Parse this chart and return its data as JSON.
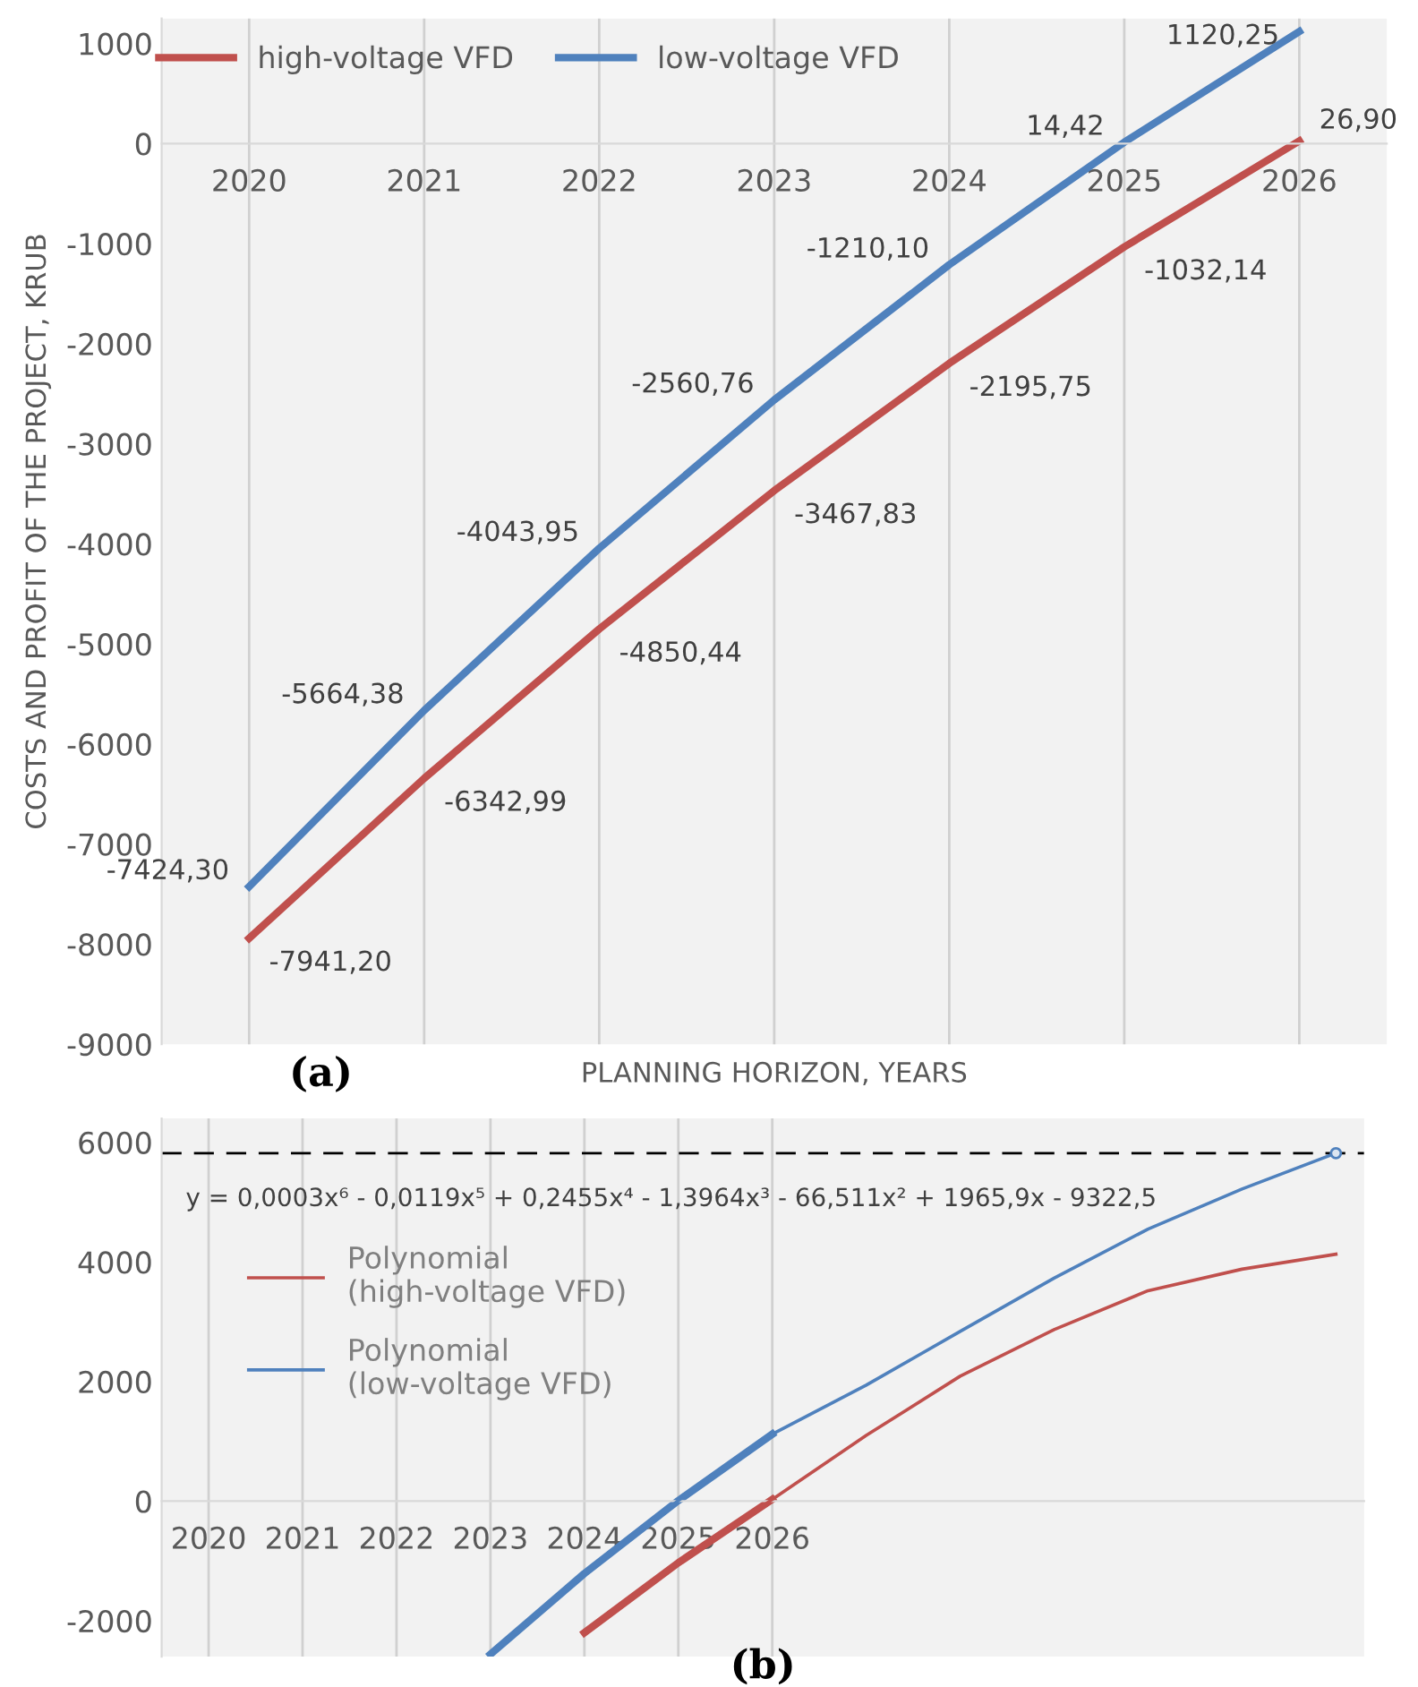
{
  "chart_data": [
    {
      "type": "line",
      "categories": [
        "2020",
        "2021",
        "2022",
        "2023",
        "2024",
        "2025",
        "2026"
      ],
      "xlabel": "PLANNING HORIZON, YEARS",
      "ylabel": "COSTS AND PROFIT OF THE PROJECT, KRUB",
      "ylim": [
        -9000,
        1250
      ],
      "yticks": [
        -9000,
        -8000,
        -7000,
        -6000,
        -5000,
        -4000,
        -3000,
        -2000,
        -1000,
        0,
        1000
      ],
      "grid": "x",
      "legend": "top",
      "line_style": "solid",
      "annotations": [
        "(a)"
      ],
      "series": [
        {
          "name": "high-voltage VFD",
          "color": "#c0504d",
          "values": [
            -7941.2,
            -6342.99,
            -4850.44,
            -3467.83,
            -2195.75,
            -1032.14,
            26.9
          ],
          "value_labels": [
            "-7941,20",
            "-6342,99",
            "-4850,44",
            "-3467,83",
            "-2195,75",
            "-1032,14",
            "26,90"
          ]
        },
        {
          "name": "low-voltage VFD",
          "color": "#4f81bd",
          "values": [
            -7424.3,
            -5664.38,
            -4043.95,
            -2560.76,
            -1210.1,
            14.42,
            1120.25
          ],
          "value_labels": [
            "-7424,30",
            "-5664,38",
            "-4043,95",
            "-2560,76",
            "-1210,10",
            "14,42",
            "1120,25"
          ]
        }
      ]
    },
    {
      "type": "line",
      "xlim": [
        2019.5,
        2032.3
      ],
      "xticks": [
        2020,
        2021,
        2022,
        2023,
        2024,
        2025,
        2026
      ],
      "ylim": [
        -2600,
        6400
      ],
      "yticks": [
        -2000,
        0,
        2000,
        4000,
        6000
      ],
      "grid": "x",
      "legend": "left",
      "line_style": "solid",
      "annotations": [
        "y = 0,0003x⁶ - 0,0119x⁵ + 0,2455x⁴ - 1,3964x³ - 66,511x² + 1965,9x - 9322,5",
        "(b)"
      ],
      "ref_lines": [
        {
          "axis": "y",
          "value": 5820,
          "color": "#000000",
          "line_style": "dashed"
        }
      ],
      "series": [
        {
          "color": "#c0504d",
          "x": [
            2024,
            2025,
            2026
          ],
          "values": [
            -2200,
            -1030,
            30
          ]
        },
        {
          "color": "#4f81bd",
          "x": [
            2023,
            2024,
            2025,
            2026
          ],
          "values": [
            -2560,
            -1210,
            10,
            1120
          ]
        },
        {
          "name": "Polynomial\n(high-voltage VFD)",
          "color": "#c0504d",
          "x": [
            2024,
            2025,
            2026,
            2027,
            2028,
            2029,
            2030,
            2031,
            2032
          ],
          "values": [
            -2200,
            -1030,
            30,
            1100,
            2090,
            2870,
            3520,
            3880,
            4130
          ]
        },
        {
          "name": "Polynomial\n(low-voltage VFD)",
          "color": "#4f81bd",
          "x": [
            2023,
            2024,
            2025,
            2026,
            2027,
            2028,
            2029,
            2030,
            2031,
            2032
          ],
          "values": [
            -2560,
            -1210,
            10,
            1120,
            1940,
            2840,
            3730,
            4550,
            5220,
            5820
          ]
        }
      ]
    }
  ]
}
